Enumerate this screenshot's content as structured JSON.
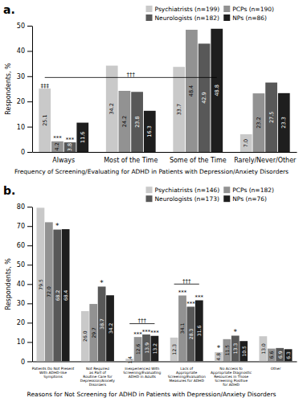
{
  "chart_data": [
    {
      "type": "bar",
      "title": "a.",
      "categories": [
        "Always",
        "Most of the Time",
        "Some of the Time",
        "Rarely/Never/Other"
      ],
      "series": [
        {
          "name": "Psychiatrists (n=199)",
          "color": "#c9c9c9",
          "values": [
            25.1,
            34.2,
            33.7,
            7.0
          ],
          "value_labels": [
            "25.1",
            "34.2",
            "33.7",
            "7.0"
          ]
        },
        {
          "name": "PCPs (n=190)",
          "color": "#929292",
          "values": [
            4.2,
            24.2,
            48.4,
            23.2
          ],
          "value_labels": [
            "4.2",
            "24.2",
            "48.4",
            "23.2"
          ]
        },
        {
          "name": "Neurologists (n=182)",
          "color": "#585858",
          "values": [
            3.8,
            23.8,
            42.9,
            27.5
          ],
          "value_labels": [
            "3.8",
            "23.8",
            "42.9",
            "27.5"
          ]
        },
        {
          "name": "NPs (n=86)",
          "color": "#1e1e1e",
          "values": [
            11.6,
            16.3,
            48.8,
            23.3
          ],
          "value_labels": [
            "11.6",
            "16.3",
            "48.8",
            "23.3"
          ]
        }
      ],
      "ylabel": "Respondents, %",
      "xlabel": "Frequency of Screening/Evaluating for ADHD in Patients with Depression/Anxiety Disorders",
      "ylim": [
        0,
        50
      ],
      "yticks": [
        0,
        10,
        20,
        30,
        40,
        50
      ],
      "data_labels": true,
      "legend": "top",
      "annotations": [
        {
          "text": "‡‡‡",
          "series": 0,
          "category": 0
        },
        {
          "text": "***",
          "series": 1,
          "category": 0
        },
        {
          "text": "***",
          "series": 2,
          "category": 0
        },
        {
          "text": "†††",
          "y": 29.5,
          "from": [
            0,
            0
          ],
          "to": [
            3,
            2
          ]
        }
      ]
    },
    {
      "type": "bar",
      "title": "b.",
      "categories": [
        "Patients Do Not Present\nWith ADHD-like\nSymptoms",
        "Not Required\nas Part of\nRoutine Care for\nDepression/Anxiety\nDisorders",
        "Inexperienced With\nScreening/Evaluating\nADHD in Adults",
        "Lack of\nAppropriate\nScreening/Evaluation\nMeasures for ADHD",
        "No Access to\nAppropriate Diagnostic\nResources in Those\nScreening Positive\nfor ADHD",
        "Other"
      ],
      "series": [
        {
          "name": "Psychiatrists (n=146)",
          "color": "#c9c9c9",
          "values": [
            79.5,
            26.0,
            1.4,
            12.3,
            4.8,
            13.0
          ],
          "value_labels": [
            "79.5",
            "26.0",
            "1.4",
            "12.3",
            "4.8",
            "13.0"
          ]
        },
        {
          "name": "PCPs (n=182)",
          "color": "#929292",
          "values": [
            72.0,
            29.7,
            12.6,
            34.1,
            11.5,
            6.6
          ],
          "value_labels": [
            "72.0",
            "29.7",
            "12.6",
            "34.1",
            "11.5",
            "6.6"
          ]
        },
        {
          "name": "Neurologists (n=173)",
          "color": "#585858",
          "values": [
            68.2,
            38.7,
            13.9,
            28.3,
            13.3,
            6.9
          ],
          "value_labels": [
            "68.2",
            "38.7",
            "13.9",
            "28.3",
            "13.3",
            "6.9"
          ]
        },
        {
          "name": "NPs (n=76)",
          "color": "#1e1e1e",
          "values": [
            68.4,
            34.2,
            13.2,
            31.6,
            10.5,
            6.3
          ],
          "value_labels": [
            "68.4",
            "34.2",
            "13.2",
            "31.6",
            "10.5",
            "6.3"
          ]
        }
      ],
      "ylabel": "Respondents, %",
      "xlabel": "Reasons for Not Screening for ADHD in Patients with Depression/Anxiety Disorders",
      "ylim": [
        0,
        80
      ],
      "yticks": [
        0,
        10,
        20,
        30,
        40,
        50,
        60,
        70,
        80
      ],
      "data_labels": true,
      "legend": "top",
      "annotations": [
        {
          "text": "*",
          "series": 2,
          "category": 0
        },
        {
          "text": "*",
          "series": 2,
          "category": 1
        },
        {
          "text": "†††",
          "y": 19.5,
          "from": [
            0,
            2
          ],
          "to": [
            3,
            2
          ]
        },
        {
          "text": "***",
          "series": 1,
          "category": 2
        },
        {
          "text": "***",
          "series": 2,
          "category": 2
        },
        {
          "text": "***",
          "series": 3,
          "category": 2
        },
        {
          "text": "†††",
          "y": 40.0,
          "from": [
            0,
            3
          ],
          "to": [
            3,
            3
          ]
        },
        {
          "text": "***",
          "series": 1,
          "category": 3
        },
        {
          "text": "***",
          "series": 2,
          "category": 3
        },
        {
          "text": "***",
          "series": 3,
          "category": 3
        },
        {
          "text": "*",
          "series": 0,
          "category": 4
        },
        {
          "text": "*",
          "series": 2,
          "category": 4
        }
      ]
    }
  ]
}
